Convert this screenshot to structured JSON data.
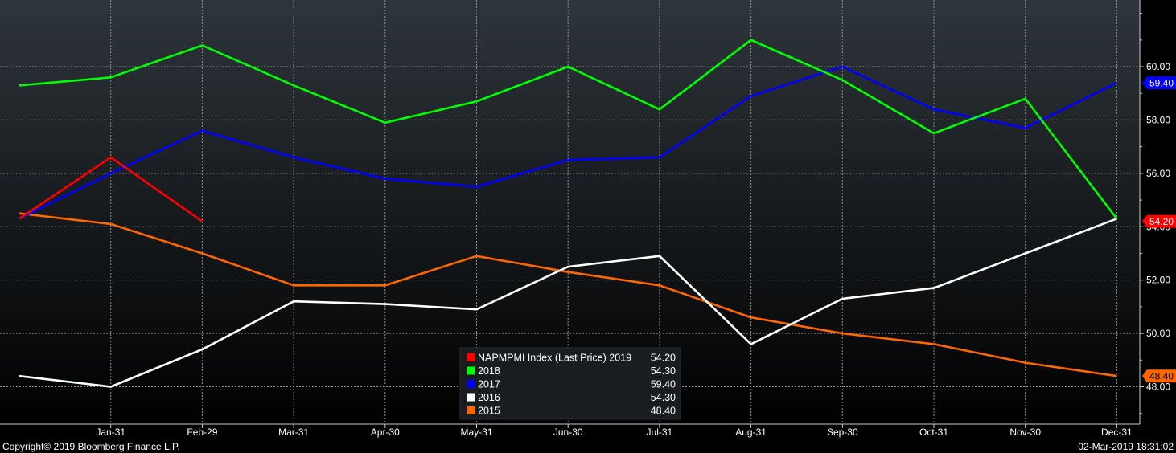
{
  "chart_data": {
    "type": "line",
    "categories": [
      "Jan-31",
      "Feb-29",
      "Mar-31",
      "Apr-30",
      "May-31",
      "Jun-30",
      "Jul-31",
      "Aug-31",
      "Sep-30",
      "Oct-31",
      "Nov-30",
      "Dec-31"
    ],
    "y_ticks": [
      "48.00",
      "50.00",
      "52.00",
      "54.00",
      "56.00",
      "58.00",
      "60.00"
    ],
    "ylim": [
      46.6,
      62.5
    ],
    "grid": true,
    "legend_position": "bottom-center",
    "series": [
      {
        "name": "NAPMPMI Index (Last Price) 2019",
        "last": "54.20",
        "color": "#ff0000",
        "x": [
          "Dec-31",
          "Jan-31",
          "Feb-29"
        ],
        "values": [
          54.3,
          56.6,
          54.2
        ]
      },
      {
        "name": "2018",
        "last": "54.30",
        "color": "#00ff00",
        "x": [
          "Dec-31",
          "Jan-31",
          "Feb-29",
          "Mar-31",
          "Apr-30",
          "May-31",
          "Jun-30",
          "Jul-31",
          "Aug-31",
          "Sep-30",
          "Oct-31",
          "Nov-30",
          "Dec-31"
        ],
        "values": [
          59.3,
          59.6,
          60.8,
          59.3,
          57.9,
          58.7,
          60.0,
          58.4,
          61.0,
          59.5,
          57.5,
          58.8,
          54.3
        ]
      },
      {
        "name": "2017",
        "last": "59.40",
        "color": "#0000ff",
        "x": [
          "Dec-31",
          "Jan-31",
          "Feb-29",
          "Mar-31",
          "Apr-30",
          "May-31",
          "Jun-30",
          "Jul-31",
          "Aug-31",
          "Sep-30",
          "Oct-31",
          "Nov-30",
          "Dec-31"
        ],
        "values": [
          54.3,
          56.0,
          57.6,
          56.6,
          55.8,
          55.5,
          56.5,
          56.6,
          58.9,
          60.0,
          58.4,
          57.7,
          59.4
        ]
      },
      {
        "name": "2016",
        "last": "54.30",
        "color": "#ffffff",
        "x": [
          "Dec-31",
          "Jan-31",
          "Feb-29",
          "Mar-31",
          "Apr-30",
          "May-31",
          "Jun-30",
          "Jul-31",
          "Aug-31",
          "Sep-30",
          "Oct-31",
          "Nov-30",
          "Dec-31"
        ],
        "values": [
          48.4,
          48.0,
          49.4,
          51.2,
          51.1,
          50.9,
          52.5,
          52.9,
          49.6,
          51.3,
          51.7,
          53.0,
          54.3
        ]
      },
      {
        "name": "2015",
        "last": "48.40",
        "color": "#ff6600",
        "x": [
          "Dec-31",
          "Jan-31",
          "Feb-29",
          "Mar-31",
          "Apr-30",
          "May-31",
          "Jun-30",
          "Jul-31",
          "Aug-31",
          "Sep-30",
          "Oct-31",
          "Nov-30",
          "Dec-31"
        ],
        "values": [
          54.5,
          54.1,
          53.0,
          51.8,
          51.8,
          52.9,
          52.3,
          51.8,
          50.6,
          50.0,
          49.6,
          48.9,
          48.4
        ]
      }
    ],
    "price_tags": [
      {
        "value": 59.4,
        "label": "59.40",
        "bg": "#0000ff",
        "fg": "#ffffff"
      },
      {
        "value": 54.2,
        "label": "54.20",
        "bg": "#ff0000",
        "fg": "#ffffff"
      },
      {
        "value": 48.4,
        "label": "48.40",
        "bg": "#ff6600",
        "fg": "#000000"
      }
    ]
  },
  "footer": {
    "copyright": "Copyright© 2019 Bloomberg Finance L.P.",
    "timestamp": "02-Mar-2019 18:31:02"
  }
}
